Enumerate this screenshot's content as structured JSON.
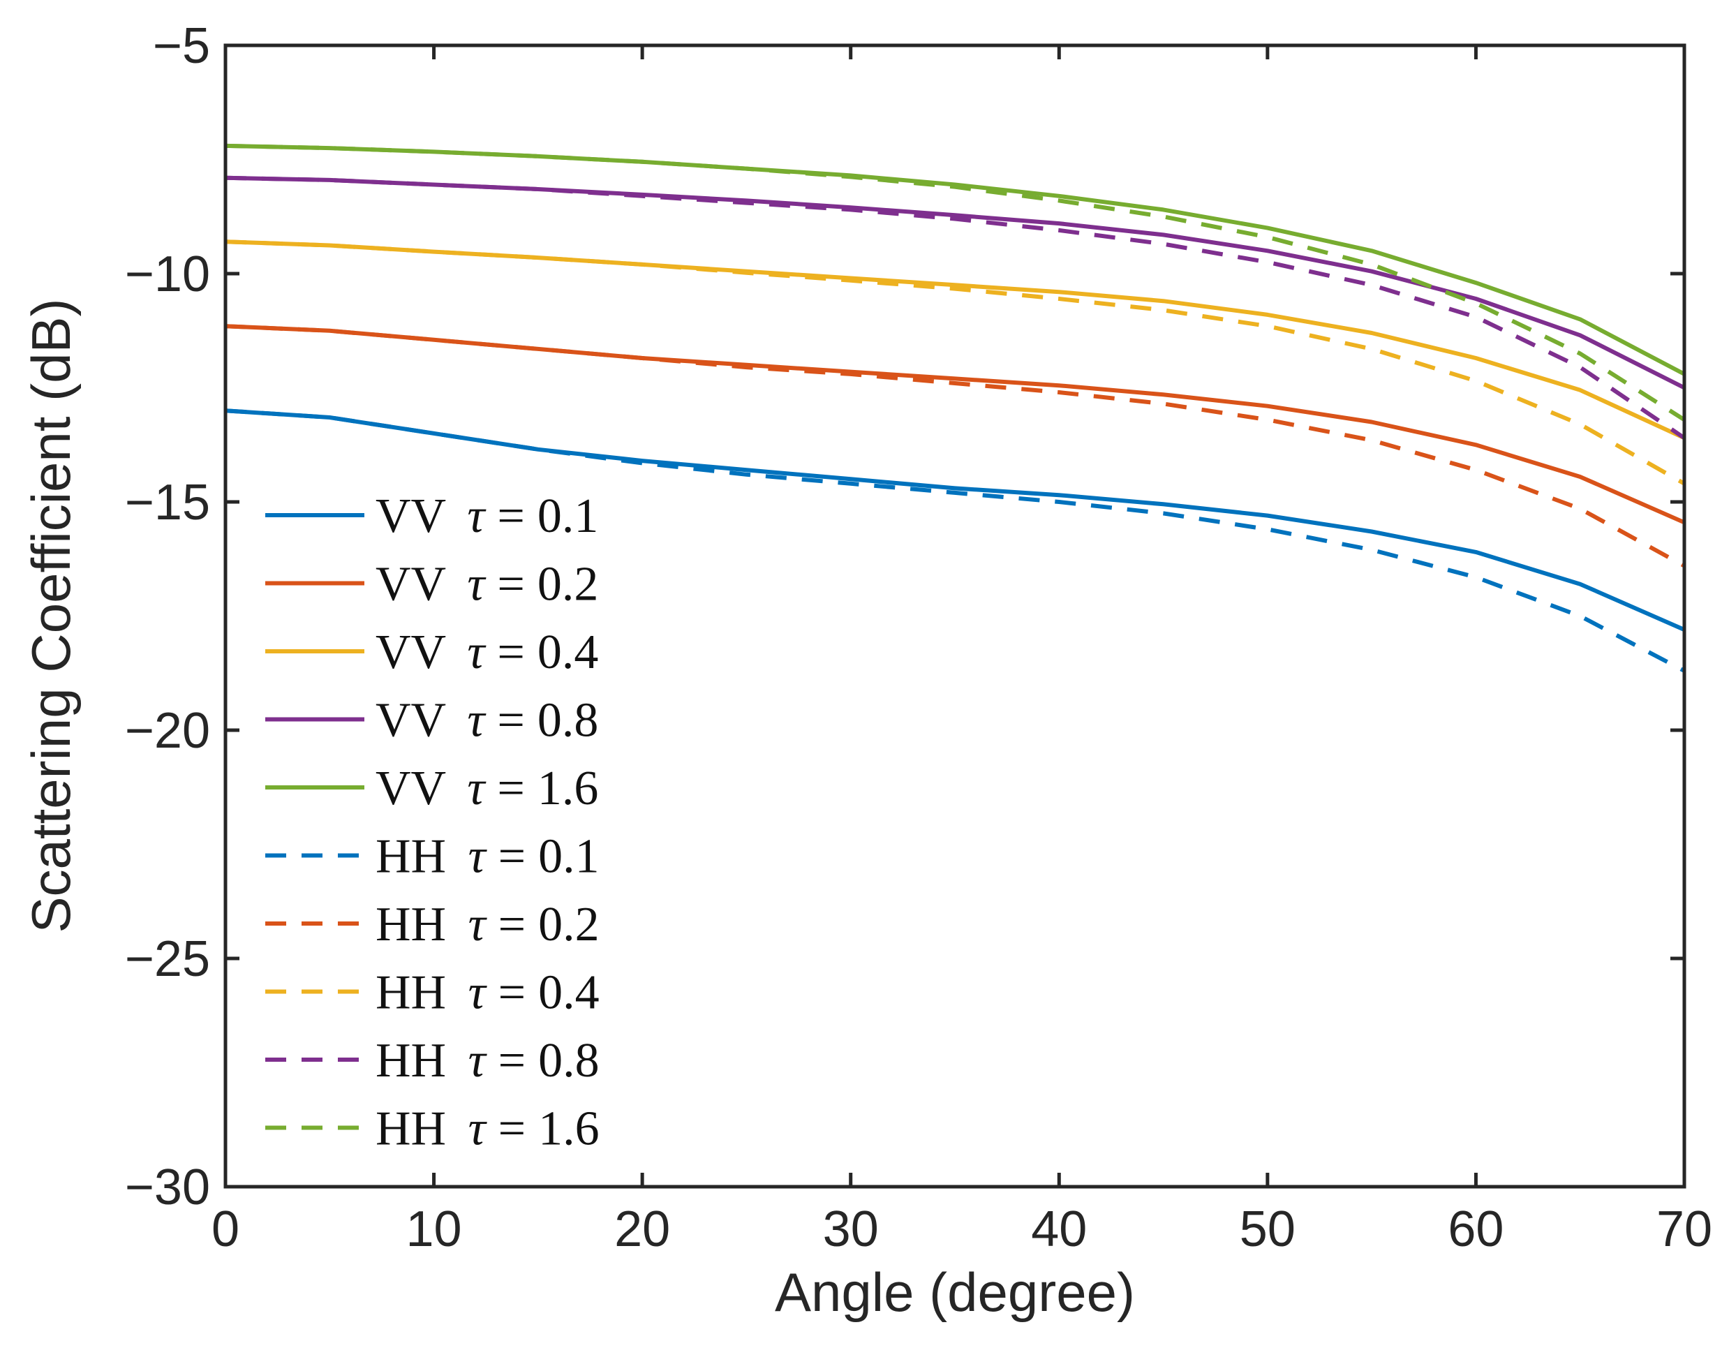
{
  "chart_data": {
    "type": "line",
    "title": "",
    "xlabel": "Angle (degree)",
    "ylabel": "Scattering Coefficient (dB)",
    "xlim": [
      0,
      70
    ],
    "ylim": [
      -30,
      -5
    ],
    "xticks": [
      "0",
      "10",
      "20",
      "30",
      "40",
      "50",
      "60",
      "70"
    ],
    "yticks": [
      "−5",
      "−10",
      "−15",
      "−20",
      "−25",
      "−30"
    ],
    "ytick_values": [
      -5,
      -10,
      -15,
      -20,
      -25,
      -30
    ],
    "xtick_values": [
      0,
      10,
      20,
      30,
      40,
      50,
      60,
      70
    ],
    "grid": false,
    "legend_position": "left-middle",
    "x": [
      0,
      5,
      10,
      15,
      20,
      25,
      30,
      35,
      40,
      45,
      50,
      55,
      60,
      65,
      70
    ],
    "series": [
      {
        "name": "VV",
        "tau": "0.1",
        "color": "#0072BD",
        "dash": "solid",
        "values": [
          -13.0,
          -13.15,
          -13.5,
          -13.85,
          -14.1,
          -14.3,
          -14.5,
          -14.7,
          -14.85,
          -15.05,
          -15.3,
          -15.65,
          -16.1,
          -16.8,
          -17.8
        ]
      },
      {
        "name": "VV",
        "tau": "0.2",
        "color": "#D95319",
        "dash": "solid",
        "values": [
          -11.15,
          -11.25,
          -11.45,
          -11.65,
          -11.85,
          -12.0,
          -12.15,
          -12.3,
          -12.45,
          -12.65,
          -12.9,
          -13.25,
          -13.75,
          -14.45,
          -15.45
        ]
      },
      {
        "name": "VV",
        "tau": "0.4",
        "color": "#EDB120",
        "dash": "solid",
        "values": [
          -9.3,
          -9.38,
          -9.52,
          -9.65,
          -9.8,
          -9.95,
          -10.1,
          -10.25,
          -10.4,
          -10.6,
          -10.9,
          -11.3,
          -11.85,
          -12.55,
          -13.6
        ]
      },
      {
        "name": "VV",
        "tau": "0.8",
        "color": "#7E2F8E",
        "dash": "solid",
        "values": [
          -7.9,
          -7.95,
          -8.05,
          -8.15,
          -8.27,
          -8.4,
          -8.55,
          -8.72,
          -8.9,
          -9.15,
          -9.5,
          -9.95,
          -10.55,
          -11.35,
          -12.5
        ]
      },
      {
        "name": "VV",
        "tau": "1.6",
        "color": "#77AC30",
        "dash": "solid",
        "values": [
          -7.2,
          -7.25,
          -7.33,
          -7.43,
          -7.55,
          -7.7,
          -7.85,
          -8.05,
          -8.3,
          -8.6,
          -9.0,
          -9.5,
          -10.2,
          -11.0,
          -12.2
        ]
      },
      {
        "name": "HH",
        "tau": "0.1",
        "color": "#0072BD",
        "dash": "dashed",
        "values": [
          -13.0,
          -13.15,
          -13.5,
          -13.85,
          -14.15,
          -14.4,
          -14.6,
          -14.8,
          -15.0,
          -15.25,
          -15.6,
          -16.05,
          -16.65,
          -17.5,
          -18.7
        ]
      },
      {
        "name": "HH",
        "tau": "0.2",
        "color": "#D95319",
        "dash": "dashed",
        "values": [
          -11.15,
          -11.25,
          -11.45,
          -11.65,
          -11.85,
          -12.05,
          -12.2,
          -12.4,
          -12.6,
          -12.85,
          -13.2,
          -13.65,
          -14.3,
          -15.15,
          -16.4
        ]
      },
      {
        "name": "HH",
        "tau": "0.4",
        "color": "#EDB120",
        "dash": "dashed",
        "values": [
          -9.3,
          -9.38,
          -9.52,
          -9.65,
          -9.8,
          -9.98,
          -10.15,
          -10.33,
          -10.55,
          -10.8,
          -11.15,
          -11.65,
          -12.35,
          -13.3,
          -14.6
        ]
      },
      {
        "name": "HH",
        "tau": "0.8",
        "color": "#7E2F8E",
        "dash": "dashed",
        "values": [
          -7.9,
          -7.95,
          -8.05,
          -8.15,
          -8.3,
          -8.45,
          -8.6,
          -8.8,
          -9.05,
          -9.35,
          -9.75,
          -10.25,
          -10.95,
          -12.05,
          -13.6
        ]
      },
      {
        "name": "HH",
        "tau": "1.6",
        "color": "#77AC30",
        "dash": "dashed",
        "values": [
          -7.2,
          -7.25,
          -7.33,
          -7.43,
          -7.55,
          -7.7,
          -7.88,
          -8.1,
          -8.4,
          -8.75,
          -9.2,
          -9.8,
          -10.65,
          -11.75,
          -13.2
        ]
      }
    ],
    "legend_entries": [
      {
        "label": "VV",
        "tau_symbol": "τ",
        "equals": "=",
        "value": "0.1"
      },
      {
        "label": "VV",
        "tau_symbol": "τ",
        "equals": "=",
        "value": "0.2"
      },
      {
        "label": "VV",
        "tau_symbol": "τ",
        "equals": "=",
        "value": "0.4"
      },
      {
        "label": "VV",
        "tau_symbol": "τ",
        "equals": "=",
        "value": "0.8"
      },
      {
        "label": "VV",
        "tau_symbol": "τ",
        "equals": "=",
        "value": "1.6"
      },
      {
        "label": "HH",
        "tau_symbol": "τ",
        "equals": "=",
        "value": "0.1"
      },
      {
        "label": "HH",
        "tau_symbol": "τ",
        "equals": "=",
        "value": "0.2"
      },
      {
        "label": "HH",
        "tau_symbol": "τ",
        "equals": "=",
        "value": "0.4"
      },
      {
        "label": "HH",
        "tau_symbol": "τ",
        "equals": "=",
        "value": "0.8"
      },
      {
        "label": "HH",
        "tau_symbol": "τ",
        "equals": "=",
        "value": "1.6"
      }
    ]
  }
}
